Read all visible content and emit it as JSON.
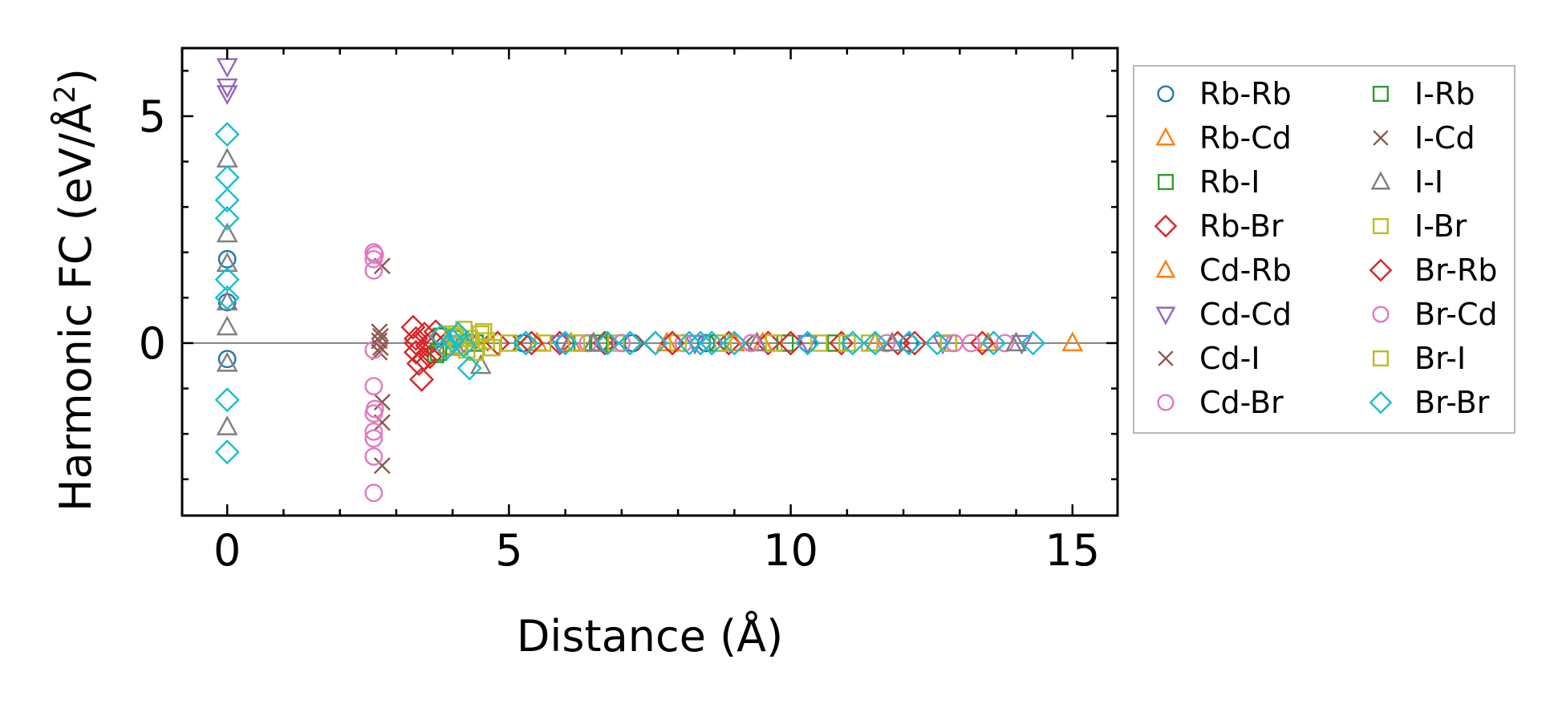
{
  "chart_data": {
    "type": "scatter",
    "title": "",
    "xlabel": "Distance (Å)",
    "ylabel_main": "Harmonic FC (eV/Å",
    "ylabel_sup": "2",
    "ylabel_end": ")",
    "xlim": [
      -0.8,
      15.8
    ],
    "ylim": [
      -3.8,
      6.5
    ],
    "xticks": [
      0,
      5,
      10,
      15
    ],
    "xtick_labels": [
      "0",
      "5",
      "10",
      "15"
    ],
    "yticks": [
      0,
      5
    ],
    "ytick_labels": [
      "0",
      "5"
    ],
    "x_minor_step": 1,
    "y_minor_step": 1,
    "reference_line_y": 0,
    "grid": false,
    "legend_position": "outside-right",
    "legend_columns": 2,
    "series": [
      {
        "name": "Rb-Rb",
        "marker": "circle",
        "color": "#1f77b4",
        "points": [
          [
            0,
            1.85
          ],
          [
            0,
            0.9
          ],
          [
            0,
            -0.35
          ],
          [
            5.25,
            0.0
          ],
          [
            6.0,
            0.0
          ],
          [
            7.2,
            0.0
          ],
          [
            8.5,
            0.0
          ],
          [
            10.3,
            0.0
          ],
          [
            12.1,
            0.0
          ]
        ]
      },
      {
        "name": "Rb-Cd",
        "marker": "triangle-up",
        "color": "#ff7f0e",
        "points": [
          [
            3.9,
            -0.08
          ],
          [
            5.5,
            0.0
          ],
          [
            7.8,
            0.0
          ],
          [
            9.5,
            0.0
          ],
          [
            11.5,
            0.0
          ],
          [
            13.5,
            0.0
          ],
          [
            15.0,
            0.0
          ]
        ]
      },
      {
        "name": "Rb-I",
        "marker": "square",
        "color": "#2ca02c",
        "points": [
          [
            3.7,
            -0.25
          ],
          [
            3.8,
            0.15
          ],
          [
            4.4,
            0.0
          ],
          [
            6.3,
            0.0
          ],
          [
            8.7,
            0.0
          ],
          [
            10.8,
            0.0
          ],
          [
            12.8,
            0.0
          ]
        ]
      },
      {
        "name": "Rb-Br",
        "marker": "diamond",
        "color": "#d62728",
        "points": [
          [
            3.3,
            0.35
          ],
          [
            3.35,
            0.1
          ],
          [
            3.35,
            -0.2
          ],
          [
            3.4,
            -0.45
          ],
          [
            3.45,
            -0.8
          ],
          [
            3.5,
            0.2
          ],
          [
            3.55,
            -0.05
          ],
          [
            3.6,
            -0.3
          ],
          [
            3.7,
            0.25
          ],
          [
            4.8,
            0.0
          ],
          [
            5.9,
            0.0
          ],
          [
            6.7,
            0.0
          ],
          [
            7.6,
            0.0
          ],
          [
            8.9,
            0.0
          ],
          [
            9.6,
            0.0
          ],
          [
            10.9,
            0.0
          ],
          [
            11.9,
            0.0
          ],
          [
            13.4,
            0.0
          ]
        ]
      },
      {
        "name": "Cd-Rb",
        "marker": "triangle-up",
        "color": "#ff7f0e",
        "points": [
          [
            4.0,
            -0.1
          ],
          [
            6.1,
            0.0
          ],
          [
            9.0,
            0.0
          ]
        ]
      },
      {
        "name": "Cd-Cd",
        "marker": "triangle-down",
        "color": "#9467bd",
        "points": [
          [
            0,
            6.1
          ],
          [
            0,
            5.65
          ],
          [
            0,
            5.5
          ],
          [
            4.2,
            0.0
          ],
          [
            5.9,
            0.0
          ],
          [
            8.3,
            0.0
          ],
          [
            10.3,
            0.0
          ],
          [
            12.7,
            0.0
          ],
          [
            14.1,
            0.0
          ]
        ]
      },
      {
        "name": "Cd-I",
        "marker": "x",
        "color": "#8c564b",
        "points": [
          [
            2.75,
            1.7
          ],
          [
            2.7,
            0.25
          ],
          [
            2.7,
            0.05
          ],
          [
            2.7,
            -0.2
          ],
          [
            2.75,
            -1.3
          ],
          [
            2.75,
            -1.75
          ],
          [
            2.75,
            -2.7
          ],
          [
            4.5,
            0.0
          ],
          [
            6.8,
            0.0
          ],
          [
            9.2,
            0.0
          ]
        ]
      },
      {
        "name": "Cd-Br",
        "marker": "circle",
        "color": "#e377c2",
        "points": [
          [
            2.6,
            2.0
          ],
          [
            2.6,
            1.85
          ],
          [
            2.6,
            1.6
          ],
          [
            2.6,
            -0.15
          ],
          [
            2.6,
            -0.95
          ],
          [
            2.6,
            -1.55
          ],
          [
            2.6,
            -1.95
          ],
          [
            2.6,
            -2.1
          ],
          [
            2.6,
            -2.5
          ],
          [
            2.6,
            -3.3
          ],
          [
            6.4,
            0.0
          ],
          [
            8.1,
            0.0
          ],
          [
            11.7,
            0.0
          ],
          [
            13.2,
            0.0
          ],
          [
            13.8,
            0.0
          ]
        ]
      },
      {
        "name": "I-Rb",
        "marker": "square",
        "color": "#2ca02c",
        "points": [
          [
            3.75,
            -0.2
          ],
          [
            4.1,
            0.1
          ],
          [
            6.6,
            0.0
          ],
          [
            9.9,
            0.0
          ]
        ]
      },
      {
        "name": "I-Cd",
        "marker": "x",
        "color": "#8c564b",
        "points": [
          [
            2.72,
            0.15
          ],
          [
            2.72,
            -0.1
          ],
          [
            5.2,
            0.0
          ],
          [
            7.4,
            0.0
          ]
        ]
      },
      {
        "name": "I-I",
        "marker": "triangle-up",
        "color": "#7f7f7f",
        "points": [
          [
            0,
            4.05
          ],
          [
            0,
            2.4
          ],
          [
            0,
            1.75
          ],
          [
            0,
            0.9
          ],
          [
            0,
            0.35
          ],
          [
            0,
            -0.45
          ],
          [
            0,
            -1.85
          ],
          [
            4.5,
            -0.5
          ],
          [
            6.5,
            0.0
          ],
          [
            9.4,
            0.0
          ],
          [
            11.8,
            0.0
          ],
          [
            14.0,
            0.0
          ]
        ]
      },
      {
        "name": "I-Br",
        "marker": "square",
        "color": "#bcbd22",
        "points": [
          [
            4.0,
            0.2
          ],
          [
            4.1,
            -0.05
          ],
          [
            4.2,
            0.3
          ],
          [
            4.3,
            0.1
          ],
          [
            4.4,
            -0.2
          ],
          [
            4.5,
            0.2
          ],
          [
            4.6,
            0.05
          ],
          [
            4.7,
            -0.1
          ],
          [
            5.0,
            0.0
          ],
          [
            5.6,
            0.0
          ],
          [
            6.9,
            0.0
          ],
          [
            8.0,
            0.0
          ],
          [
            9.7,
            0.0
          ],
          [
            10.5,
            0.0
          ],
          [
            11.4,
            0.0
          ],
          [
            12.8,
            0.0
          ]
        ]
      },
      {
        "name": "Br-Rb",
        "marker": "diamond",
        "color": "#d62728",
        "points": [
          [
            3.35,
            0.0
          ],
          [
            3.5,
            -0.35
          ],
          [
            3.65,
            0.05
          ],
          [
            5.4,
            0.0
          ],
          [
            7.9,
            0.0
          ],
          [
            10.0,
            0.0
          ],
          [
            12.2,
            0.0
          ]
        ]
      },
      {
        "name": "Br-Cd",
        "marker": "circle",
        "color": "#e377c2",
        "points": [
          [
            2.62,
            1.95
          ],
          [
            2.62,
            -1.45
          ],
          [
            7.0,
            0.0
          ],
          [
            9.3,
            0.0
          ],
          [
            12.9,
            0.0
          ]
        ]
      },
      {
        "name": "Br-I",
        "marker": "square",
        "color": "#bcbd22",
        "points": [
          [
            4.05,
            0.15
          ],
          [
            4.25,
            -0.15
          ],
          [
            4.55,
            0.25
          ],
          [
            6.2,
            0.0
          ],
          [
            8.8,
            0.0
          ],
          [
            11.0,
            0.0
          ]
        ]
      },
      {
        "name": "Br-Br",
        "marker": "diamond",
        "color": "#17becf",
        "points": [
          [
            0,
            4.6
          ],
          [
            0,
            3.65
          ],
          [
            0,
            3.15
          ],
          [
            0,
            2.75
          ],
          [
            0,
            1.4
          ],
          [
            0,
            1.0
          ],
          [
            0,
            -1.25
          ],
          [
            0,
            -2.4
          ],
          [
            3.8,
            0.15
          ],
          [
            3.9,
            -0.1
          ],
          [
            4.0,
            0.05
          ],
          [
            4.1,
            0.2
          ],
          [
            4.2,
            -0.05
          ],
          [
            4.3,
            -0.55
          ],
          [
            5.3,
            0.0
          ],
          [
            6.0,
            0.0
          ],
          [
            6.75,
            0.0
          ],
          [
            7.15,
            0.0
          ],
          [
            7.6,
            0.0
          ],
          [
            8.2,
            0.0
          ],
          [
            8.4,
            0.0
          ],
          [
            8.6,
            0.0
          ],
          [
            9.0,
            0.0
          ],
          [
            10.3,
            0.0
          ],
          [
            11.1,
            0.0
          ],
          [
            11.5,
            0.0
          ],
          [
            12.1,
            0.0
          ],
          [
            12.6,
            0.0
          ],
          [
            13.6,
            0.0
          ],
          [
            14.3,
            0.0
          ]
        ]
      }
    ]
  }
}
